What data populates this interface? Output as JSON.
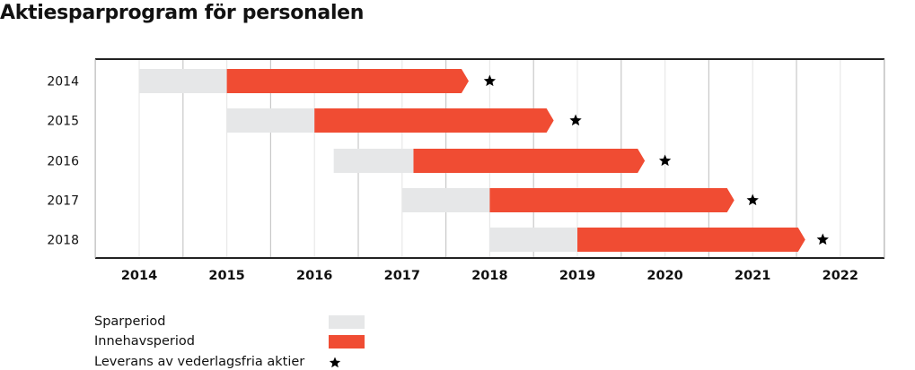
{
  "title": "Aktiesparprogram för personalen",
  "colors": {
    "spar": "#e6e7e8",
    "innehav": "#f04c33",
    "star": "#000000",
    "axis": "#222222",
    "grid_major": "#c8c8c8",
    "grid_minor": "#e8e8e8"
  },
  "chart_data": {
    "type": "gantt",
    "title": "Aktiesparprogram för personalen",
    "xlabel": "",
    "ylabel": "",
    "xlim": [
      2013.5,
      2022.5
    ],
    "x_ticks": [
      "2014",
      "2015",
      "2016",
      "2017",
      "2018",
      "2019",
      "2020",
      "2021",
      "2022"
    ],
    "x_tick_values": [
      2014,
      2015,
      2016,
      2017,
      2018,
      2019,
      2020,
      2021,
      2022
    ],
    "grid": true,
    "categories": [
      "2014",
      "2015",
      "2016",
      "2017",
      "2018"
    ],
    "series": [
      {
        "name": "Sparperiod",
        "ranges": [
          [
            2014.0,
            2015.0
          ],
          [
            2015.0,
            2016.0
          ],
          [
            2016.22,
            2017.13
          ],
          [
            2017.0,
            2018.0
          ],
          [
            2018.0,
            2019.0
          ]
        ]
      },
      {
        "name": "Innehavsperiod",
        "ranges": [
          [
            2015.0,
            2017.76
          ],
          [
            2016.0,
            2018.73
          ],
          [
            2017.13,
            2019.77
          ],
          [
            2018.0,
            2020.79
          ],
          [
            2019.0,
            2021.6
          ]
        ]
      },
      {
        "name": "Leverans av vederlagsfria aktier",
        "points": [
          2018.0,
          2018.98,
          2020.0,
          2021.0,
          2021.8
        ]
      }
    ],
    "legend_position": "bottom-left"
  },
  "legend": [
    {
      "label": "Sparperiod"
    },
    {
      "label": "Innehavsperiod"
    },
    {
      "label": "Leverans av vederlagsfria aktier"
    }
  ]
}
